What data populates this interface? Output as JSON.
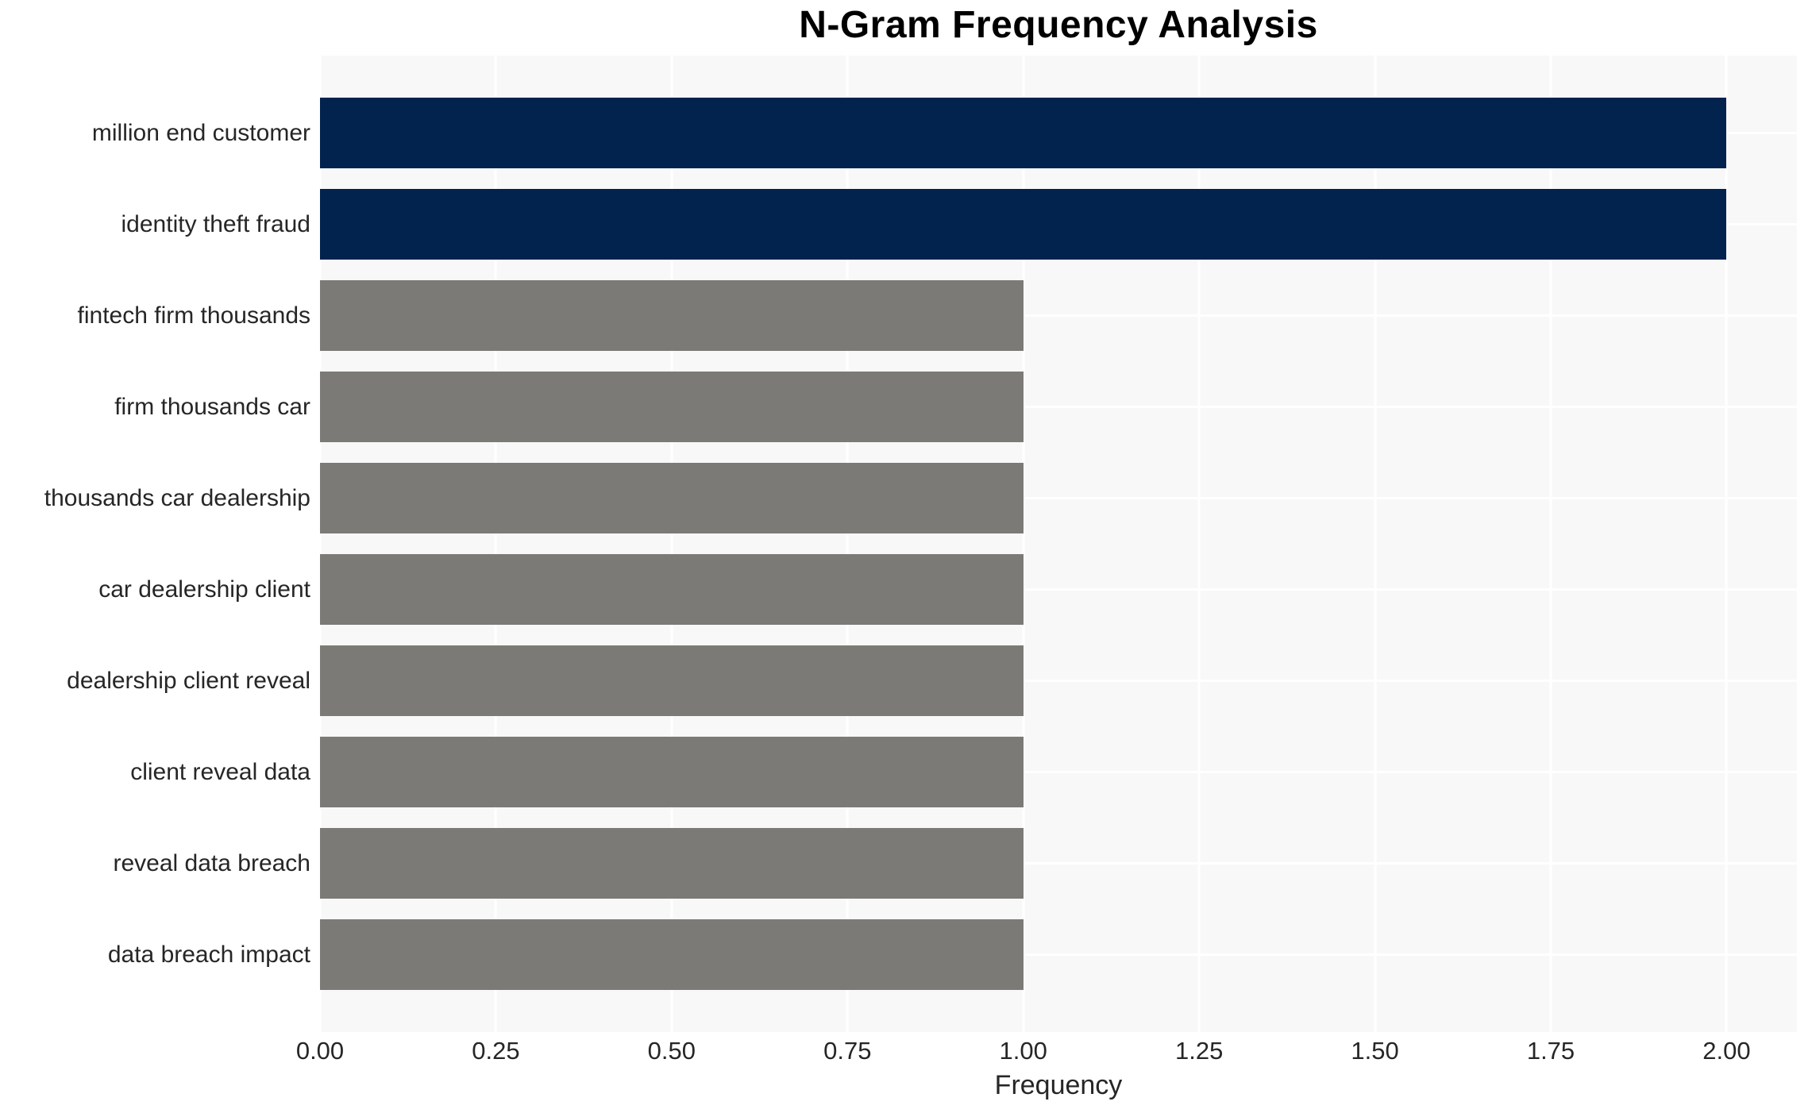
{
  "title": "N-Gram Frequency Analysis",
  "chart_data": {
    "type": "bar",
    "orientation": "horizontal",
    "title": "N-Gram Frequency Analysis",
    "xlabel": "Frequency",
    "ylabel": "",
    "categories": [
      "million end customer",
      "identity theft fraud",
      "fintech firm thousands",
      "firm thousands car",
      "thousands car dealership",
      "car dealership client",
      "dealership client reveal",
      "client reveal data",
      "reveal data breach",
      "data breach impact"
    ],
    "values": [
      2,
      2,
      1,
      1,
      1,
      1,
      1,
      1,
      1,
      1
    ],
    "bar_colors": [
      "#02234e",
      "#02234e",
      "#7b7a77",
      "#7b7a77",
      "#7b7a77",
      "#7b7a77",
      "#7b7a77",
      "#7b7a77",
      "#7b7a77",
      "#7b7a77"
    ],
    "xlim": [
      0,
      2.1
    ],
    "xtick_values": [
      0.0,
      0.25,
      0.5,
      0.75,
      1.0,
      1.25,
      1.5,
      1.75,
      2.0
    ],
    "xtick_labels": [
      "0.00",
      "0.25",
      "0.50",
      "0.75",
      "1.00",
      "1.25",
      "1.50",
      "1.75",
      "2.00"
    ],
    "grid": true,
    "legend": "none"
  },
  "colors": {
    "panel_background": "#f8f8f8",
    "gridline": "#ffffff",
    "bar_high": "#02234e",
    "bar_low": "#7b7a77",
    "text": "#262626",
    "title_text": "#000000"
  }
}
